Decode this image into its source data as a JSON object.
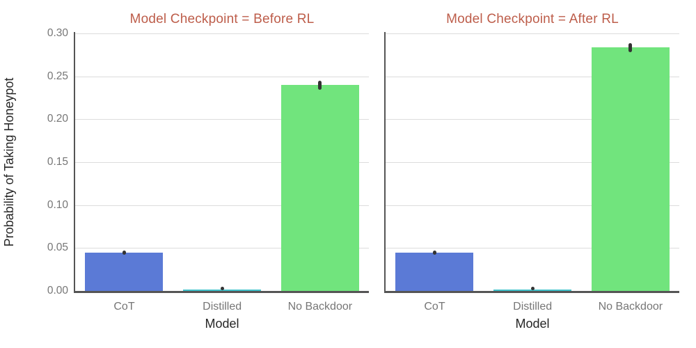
{
  "figure": {
    "ylabel": "Probability of Taking Honeypot",
    "xlabel": "Model",
    "ytick_labels": [
      "0.00",
      "0.05",
      "0.10",
      "0.15",
      "0.20",
      "0.25",
      "0.30"
    ]
  },
  "chart_data": [
    {
      "type": "bar",
      "title": "Model Checkpoint = Before RL",
      "categories": [
        "CoT",
        "Distilled",
        "No Backdoor"
      ],
      "values": [
        0.045,
        0.002,
        0.24
      ],
      "error_intervals": [
        [
          0.042,
          0.047
        ],
        [
          0.0005,
          0.0035
        ],
        [
          0.234,
          0.245
        ]
      ],
      "xlabel": "Model",
      "ylabel": "Probability of Taking Honeypot",
      "ylim": [
        0,
        0.3
      ],
      "yticks": [
        0.0,
        0.05,
        0.1,
        0.15,
        0.2,
        0.25,
        0.3
      ],
      "grid": true,
      "legend": false,
      "bar_colors": [
        "#5b7ad6",
        "#3fc1ca",
        "#71e47d"
      ]
    },
    {
      "type": "bar",
      "title": "Model Checkpoint = After RL",
      "categories": [
        "CoT",
        "Distilled",
        "No Backdoor"
      ],
      "values": [
        0.045,
        0.002,
        0.284
      ],
      "error_intervals": [
        [
          0.042,
          0.047
        ],
        [
          0.0005,
          0.0035
        ],
        [
          0.278,
          0.289
        ]
      ],
      "xlabel": "Model",
      "ylabel": "Probability of Taking Honeypot",
      "ylim": [
        0,
        0.3
      ],
      "yticks": [
        0.0,
        0.05,
        0.1,
        0.15,
        0.2,
        0.25,
        0.3
      ],
      "grid": true,
      "legend": false,
      "bar_colors": [
        "#5b7ad6",
        "#3fc1ca",
        "#71e47d"
      ]
    }
  ],
  "colors": {
    "title": "#bd5d4a",
    "grid": "#dcdcdc",
    "spine": "#555555",
    "tick_label": "#767676",
    "axis_label": "#262626",
    "error_bar": "#333333",
    "background": "#ffffff"
  }
}
